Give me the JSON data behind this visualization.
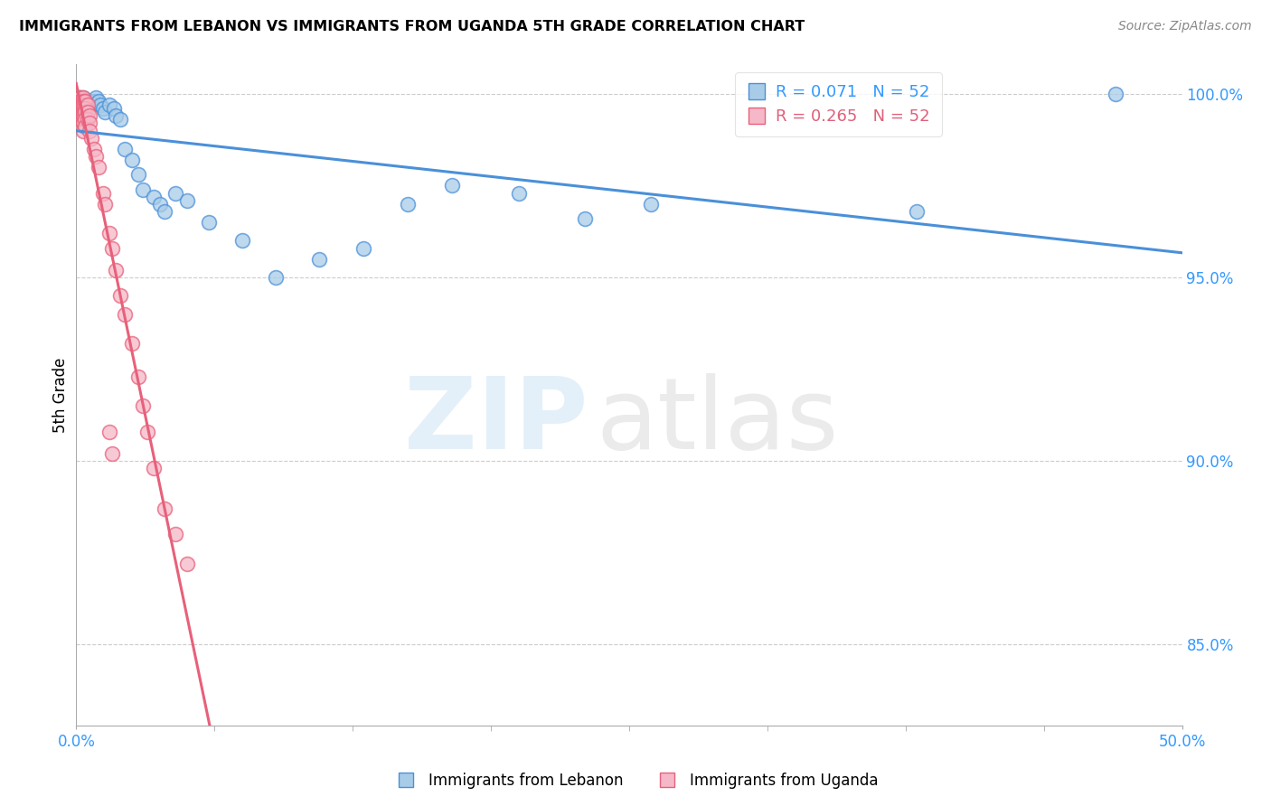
{
  "title": "IMMIGRANTS FROM LEBANON VS IMMIGRANTS FROM UGANDA 5TH GRADE CORRELATION CHART",
  "source": "Source: ZipAtlas.com",
  "ylabel": "5th Grade",
  "xlim": [
    0.0,
    0.5
  ],
  "ylim": [
    0.828,
    1.008
  ],
  "yticks": [
    0.85,
    0.9,
    0.95,
    1.0
  ],
  "ytick_labels": [
    "85.0%",
    "90.0%",
    "95.0%",
    "100.0%"
  ],
  "color_lebanon": "#a8cce8",
  "color_uganda": "#f5b8c8",
  "color_line_lebanon": "#4a90d9",
  "color_line_uganda": "#e8607a",
  "lebanon_x": [
    0.001,
    0.001,
    0.001,
    0.002,
    0.002,
    0.002,
    0.002,
    0.002,
    0.003,
    0.003,
    0.003,
    0.003,
    0.003,
    0.004,
    0.004,
    0.004,
    0.005,
    0.005,
    0.006,
    0.006,
    0.007,
    0.008,
    0.009,
    0.01,
    0.011,
    0.012,
    0.013,
    0.015,
    0.017,
    0.018,
    0.02,
    0.022,
    0.025,
    0.028,
    0.03,
    0.035,
    0.038,
    0.04,
    0.045,
    0.05,
    0.06,
    0.075,
    0.09,
    0.11,
    0.13,
    0.15,
    0.17,
    0.2,
    0.23,
    0.26,
    0.38,
    0.47
  ],
  "lebanon_y": [
    0.999,
    0.998,
    0.997,
    0.999,
    0.998,
    0.997,
    0.996,
    0.995,
    0.999,
    0.998,
    0.997,
    0.996,
    0.995,
    0.998,
    0.997,
    0.996,
    0.998,
    0.997,
    0.998,
    0.997,
    0.997,
    0.998,
    0.999,
    0.998,
    0.997,
    0.996,
    0.995,
    0.997,
    0.996,
    0.994,
    0.993,
    0.985,
    0.982,
    0.978,
    0.974,
    0.972,
    0.97,
    0.968,
    0.973,
    0.971,
    0.965,
    0.96,
    0.95,
    0.955,
    0.958,
    0.97,
    0.975,
    0.973,
    0.966,
    0.97,
    0.968,
    1.0
  ],
  "uganda_x": [
    0.001,
    0.001,
    0.001,
    0.001,
    0.002,
    0.002,
    0.002,
    0.002,
    0.002,
    0.002,
    0.002,
    0.003,
    0.003,
    0.003,
    0.003,
    0.003,
    0.003,
    0.003,
    0.003,
    0.003,
    0.004,
    0.004,
    0.004,
    0.004,
    0.004,
    0.005,
    0.005,
    0.005,
    0.006,
    0.006,
    0.006,
    0.007,
    0.008,
    0.009,
    0.01,
    0.012,
    0.013,
    0.015,
    0.016,
    0.018,
    0.02,
    0.022,
    0.025,
    0.028,
    0.03,
    0.032,
    0.035,
    0.04,
    0.045,
    0.05,
    0.015,
    0.016
  ],
  "uganda_y": [
    0.999,
    0.998,
    0.997,
    0.996,
    0.999,
    0.998,
    0.997,
    0.996,
    0.995,
    0.994,
    0.993,
    0.999,
    0.998,
    0.997,
    0.996,
    0.995,
    0.994,
    0.993,
    0.992,
    0.99,
    0.998,
    0.996,
    0.995,
    0.993,
    0.991,
    0.997,
    0.995,
    0.993,
    0.994,
    0.992,
    0.99,
    0.988,
    0.985,
    0.983,
    0.98,
    0.973,
    0.97,
    0.962,
    0.958,
    0.952,
    0.945,
    0.94,
    0.932,
    0.923,
    0.915,
    0.908,
    0.898,
    0.887,
    0.88,
    0.872,
    0.908,
    0.902
  ]
}
